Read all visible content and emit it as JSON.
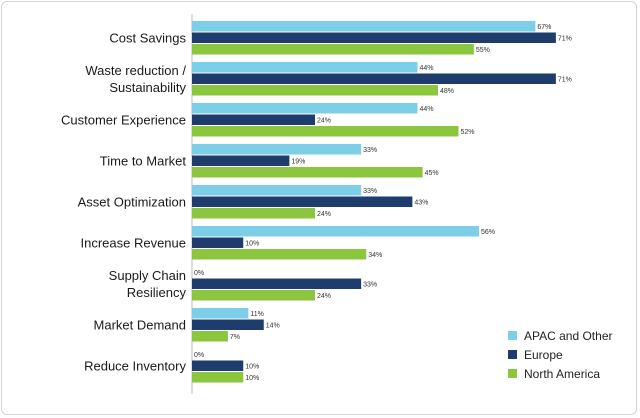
{
  "chart_data": {
    "type": "bar",
    "orientation": "horizontal",
    "categories": [
      "Cost Savings",
      "Waste reduction / Sustainability",
      "Customer Experience",
      "Time to Market",
      "Asset Optimization",
      "Increase Revenue",
      "Supply Chain Resiliency",
      "Market Demand",
      "Reduce Inventory"
    ],
    "category_lines": [
      [
        "Cost Savings"
      ],
      [
        "Waste reduction /",
        "Sustainability"
      ],
      [
        "Customer Experience"
      ],
      [
        "Time to Market"
      ],
      [
        "Asset Optimization"
      ],
      [
        "Increase Revenue"
      ],
      [
        "Supply Chain",
        "Resiliency"
      ],
      [
        "Market Demand"
      ],
      [
        "Reduce Inventory"
      ]
    ],
    "series": [
      {
        "name": "APAC and Other",
        "color": "#7dcfe8",
        "values": [
          67,
          44,
          44,
          33,
          33,
          56,
          0,
          11,
          0
        ]
      },
      {
        "name": "Europe",
        "color": "#1e3c6c",
        "values": [
          71,
          71,
          24,
          19,
          43,
          10,
          33,
          14,
          10
        ]
      },
      {
        "name": "North America",
        "color": "#8cc63f",
        "values": [
          55,
          48,
          52,
          45,
          24,
          34,
          24,
          7,
          10
        ]
      }
    ],
    "value_suffix": "%",
    "xlim": [
      0,
      80
    ],
    "grid": false,
    "legend_position": "bottom-right",
    "title": "",
    "xlabel": "",
    "ylabel": ""
  }
}
